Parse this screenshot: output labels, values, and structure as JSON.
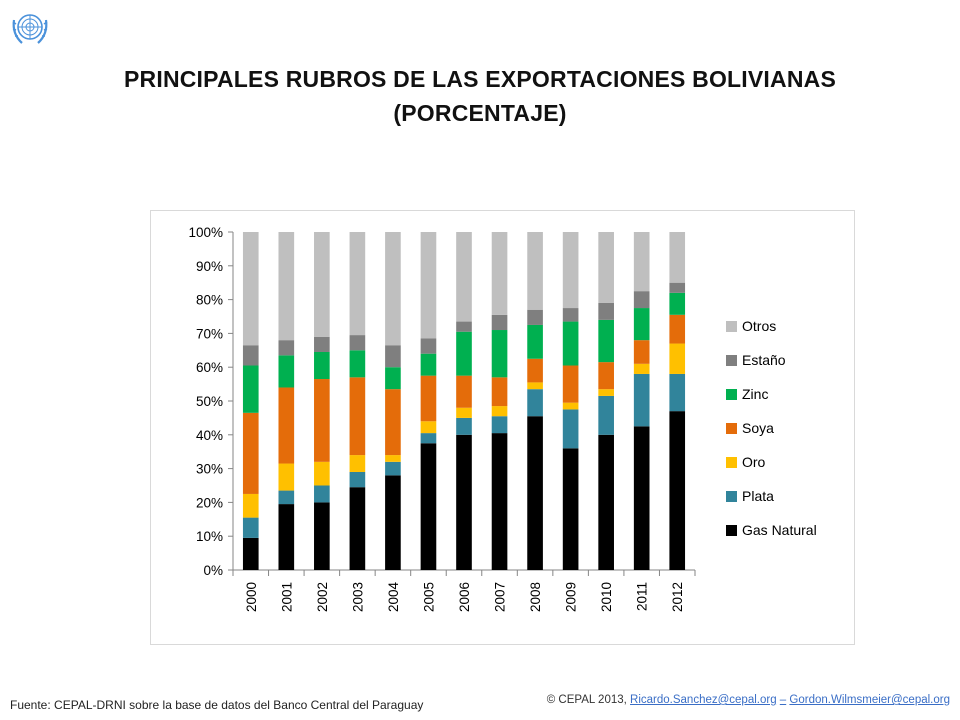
{
  "header": {
    "title_line1": "PRINCIPALES RUBROS DE LAS EXPORTACIONES BOLIVIANAS",
    "title_line2": "(PORCENTAJE)",
    "logo_icon": "un-emblem-icon"
  },
  "footer": {
    "source_label": "Fuente:",
    "source_text": "CEPAL-DRNI sobre la base de datos del Banco Central del Paraguay",
    "copyright": "© CEPAL 2013,",
    "email1": "Ricardo.Sanchez@cepal.org",
    "separator": "–",
    "email2": "Gordon.Wilmsmeier@cepal.org"
  },
  "chart_data": {
    "type": "bar",
    "stacked": true,
    "categories": [
      "2000",
      "2001",
      "2002",
      "2003",
      "2004",
      "2005",
      "2006",
      "2007",
      "2008",
      "2009",
      "2010",
      "2011",
      "2012"
    ],
    "y_ticks": [
      "0%",
      "10%",
      "20%",
      "30%",
      "40%",
      "50%",
      "60%",
      "70%",
      "80%",
      "90%",
      "100%"
    ],
    "ylim": [
      0,
      100
    ],
    "grid": false,
    "legend_position": "right",
    "series": [
      {
        "name": "Gas Natural",
        "color": "#000000",
        "values": [
          9.5,
          19.5,
          20,
          24.5,
          28,
          37.5,
          40,
          40.5,
          45.5,
          36,
          40,
          42.5,
          47
        ]
      },
      {
        "name": "Plata",
        "color": "#31849b",
        "values": [
          6,
          4,
          5,
          4.5,
          4,
          3,
          5,
          5,
          8,
          11.5,
          11.5,
          15.5,
          11
        ]
      },
      {
        "name": "Oro",
        "color": "#ffc000",
        "values": [
          7,
          8,
          7,
          5,
          2,
          3.5,
          3,
          3,
          2,
          2,
          2,
          3,
          9
        ]
      },
      {
        "name": "Soya",
        "color": "#e46c0a",
        "values": [
          24,
          22.5,
          24.5,
          23,
          19.5,
          13.5,
          9.5,
          8.5,
          7,
          11,
          8,
          7,
          8.5
        ]
      },
      {
        "name": "Zinc",
        "color": "#00b050",
        "values": [
          14,
          9.5,
          8,
          8,
          6.5,
          6.5,
          13,
          14,
          10,
          13,
          12.5,
          9.5,
          6.5
        ]
      },
      {
        "name": "Estaño",
        "color": "#7f7f7f",
        "values": [
          6,
          4.5,
          4.5,
          4.5,
          6.5,
          4.5,
          3,
          4.5,
          4.5,
          4,
          5,
          5,
          3
        ]
      },
      {
        "name": "Otros",
        "color": "#bfbfbf",
        "values": [
          33.5,
          32,
          31,
          30.5,
          33.5,
          31.5,
          26.5,
          24.5,
          23,
          22.5,
          21,
          17.5,
          15
        ]
      }
    ],
    "title": "",
    "xlabel": "",
    "ylabel": ""
  }
}
